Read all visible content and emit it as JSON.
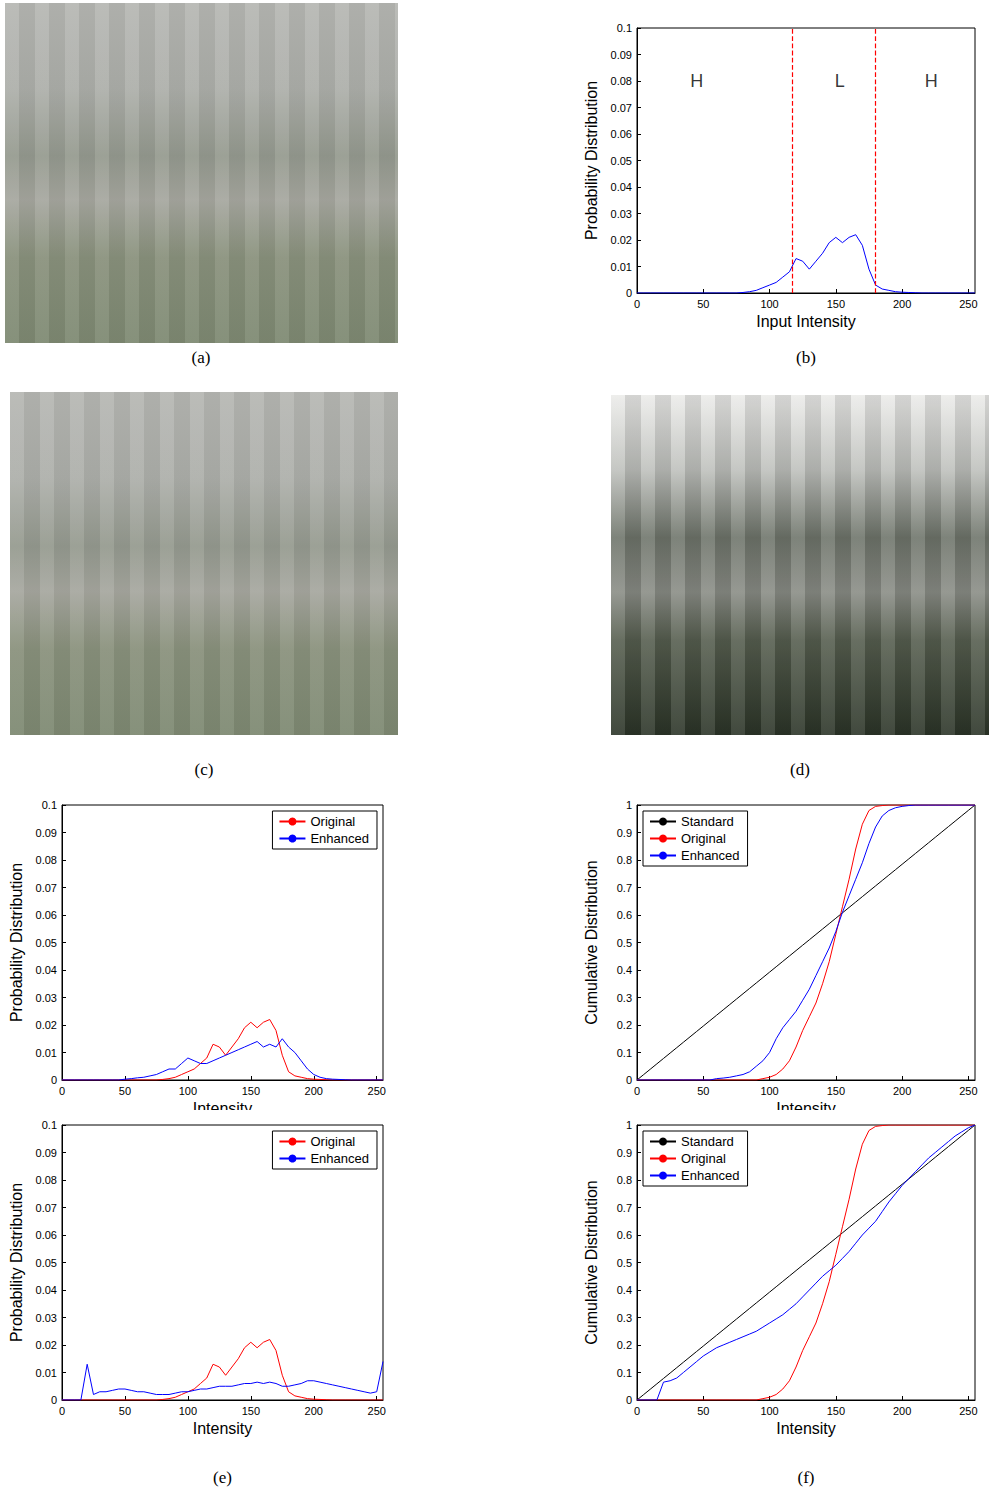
{
  "photos": [
    {
      "caption": "(a)"
    },
    {
      "caption": "(c)"
    },
    {
      "caption": "(d)"
    }
  ],
  "chart_captions": [
    "(b)",
    "(e)",
    "(f)"
  ],
  "chart_data": [
    {
      "type": "line",
      "xlabel": "Input Intensity",
      "ylabel": "Probability Distribution",
      "x": [
        0,
        5,
        10,
        15,
        20,
        25,
        30,
        35,
        40,
        45,
        50,
        55,
        60,
        65,
        70,
        75,
        80,
        85,
        90,
        95,
        100,
        105,
        110,
        115,
        120,
        125,
        130,
        135,
        140,
        145,
        150,
        155,
        160,
        165,
        170,
        175,
        180,
        185,
        190,
        195,
        200,
        205,
        210,
        215,
        220,
        225,
        230,
        235,
        240,
        245,
        250,
        255
      ],
      "values": [
        0,
        0,
        0,
        0,
        0,
        0,
        0,
        0,
        0,
        0,
        0,
        0,
        0,
        0,
        0,
        0,
        0.0002,
        0.0005,
        0.001,
        0.002,
        0.003,
        0.004,
        0.006,
        0.008,
        0.013,
        0.012,
        0.009,
        0.012,
        0.015,
        0.019,
        0.021,
        0.019,
        0.021,
        0.022,
        0.018,
        0.009,
        0.003,
        0.0015,
        0.001,
        0.0005,
        0.0003,
        0.0002,
        0.0001,
        0,
        0,
        0,
        0,
        0,
        0,
        0,
        0,
        0
      ],
      "color": "#0000ff",
      "xlim": [
        0,
        255
      ],
      "xticks": [
        0,
        50,
        100,
        150,
        200,
        250
      ],
      "ylim": [
        0,
        0.1
      ],
      "yticks": [
        0,
        0.01,
        0.02,
        0.03,
        0.04,
        0.05,
        0.06,
        0.07,
        0.08,
        0.09,
        0.1
      ],
      "grid": false,
      "vlines": [
        117,
        180
      ],
      "annotations": [
        {
          "text": "H",
          "x": 45,
          "y": 0.08
        },
        {
          "text": "L",
          "x": 153,
          "y": 0.08
        },
        {
          "text": "H",
          "x": 222,
          "y": 0.08
        }
      ]
    },
    {
      "type": "line",
      "xlabel": "Intensity",
      "ylabel": "Probability Distribution",
      "x": [
        0,
        5,
        10,
        15,
        20,
        25,
        30,
        35,
        40,
        45,
        50,
        55,
        60,
        65,
        70,
        75,
        80,
        85,
        90,
        95,
        100,
        105,
        110,
        115,
        120,
        125,
        130,
        135,
        140,
        145,
        150,
        155,
        160,
        165,
        170,
        175,
        180,
        185,
        190,
        195,
        200,
        205,
        210,
        215,
        220,
        225,
        230,
        235,
        240,
        245,
        250,
        255
      ],
      "series": [
        {
          "name": "Original",
          "color": "#ff0000",
          "values": [
            0,
            0,
            0,
            0,
            0,
            0,
            0,
            0,
            0,
            0,
            0,
            0,
            0,
            0,
            0,
            0,
            0.0002,
            0.0005,
            0.001,
            0.002,
            0.003,
            0.004,
            0.006,
            0.008,
            0.013,
            0.012,
            0.009,
            0.012,
            0.015,
            0.019,
            0.021,
            0.019,
            0.021,
            0.022,
            0.018,
            0.009,
            0.003,
            0.0015,
            0.001,
            0.0005,
            0.0003,
            0.0002,
            0.0001,
            0,
            0,
            0,
            0,
            0,
            0,
            0,
            0,
            0
          ]
        },
        {
          "name": "Enhanced",
          "color": "#0000ff",
          "values": [
            0,
            0,
            0,
            0,
            0,
            0,
            0,
            0,
            0,
            0,
            0.0003,
            0.0005,
            0.0008,
            0.001,
            0.0015,
            0.002,
            0.003,
            0.004,
            0.004,
            0.006,
            0.008,
            0.007,
            0.006,
            0.006,
            0.007,
            0.008,
            0.009,
            0.01,
            0.011,
            0.012,
            0.013,
            0.014,
            0.012,
            0.013,
            0.012,
            0.015,
            0.012,
            0.01,
            0.007,
            0.004,
            0.002,
            0.001,
            0.0005,
            0.0003,
            0.0002,
            0.0001,
            0,
            0,
            0,
            0,
            0,
            0
          ]
        }
      ],
      "xlim": [
        0,
        255
      ],
      "xticks": [
        0,
        50,
        100,
        150,
        200,
        250
      ],
      "ylim": [
        0,
        0.1
      ],
      "yticks": [
        0,
        0.01,
        0.02,
        0.03,
        0.04,
        0.05,
        0.06,
        0.07,
        0.08,
        0.09,
        0.1
      ],
      "grid": false,
      "legend": "upper right"
    },
    {
      "type": "line",
      "xlabel": "Intensity",
      "ylabel": "Probability Distribution",
      "x": [
        0,
        5,
        10,
        15,
        20,
        25,
        30,
        35,
        40,
        45,
        50,
        55,
        60,
        65,
        70,
        75,
        80,
        85,
        90,
        95,
        100,
        105,
        110,
        115,
        120,
        125,
        130,
        135,
        140,
        145,
        150,
        155,
        160,
        165,
        170,
        175,
        180,
        185,
        190,
        195,
        200,
        205,
        210,
        215,
        220,
        225,
        230,
        235,
        240,
        245,
        250,
        255
      ],
      "series": [
        {
          "name": "Original",
          "color": "#ff0000",
          "values": [
            0,
            0,
            0,
            0,
            0,
            0,
            0,
            0,
            0,
            0,
            0,
            0,
            0,
            0,
            0,
            0,
            0.0002,
            0.0005,
            0.001,
            0.002,
            0.003,
            0.004,
            0.006,
            0.008,
            0.013,
            0.012,
            0.009,
            0.012,
            0.015,
            0.019,
            0.021,
            0.019,
            0.021,
            0.022,
            0.018,
            0.009,
            0.003,
            0.0015,
            0.001,
            0.0005,
            0.0003,
            0.0002,
            0.0001,
            0,
            0,
            0,
            0,
            0,
            0,
            0,
            0,
            0
          ]
        },
        {
          "name": "Enhanced",
          "color": "#0000ff",
          "values": [
            0,
            0,
            0,
            0,
            0.013,
            0.002,
            0.003,
            0.003,
            0.0035,
            0.004,
            0.004,
            0.0035,
            0.003,
            0.003,
            0.0025,
            0.002,
            0.002,
            0.002,
            0.0025,
            0.003,
            0.003,
            0.0035,
            0.004,
            0.004,
            0.0045,
            0.005,
            0.005,
            0.005,
            0.0055,
            0.006,
            0.006,
            0.0065,
            0.006,
            0.0065,
            0.006,
            0.005,
            0.005,
            0.0055,
            0.006,
            0.007,
            0.007,
            0.0065,
            0.006,
            0.0055,
            0.005,
            0.0045,
            0.004,
            0.0035,
            0.003,
            0.0025,
            0.003,
            0.014
          ]
        }
      ],
      "xlim": [
        0,
        255
      ],
      "xticks": [
        0,
        50,
        100,
        150,
        200,
        250
      ],
      "ylim": [
        0,
        0.1
      ],
      "yticks": [
        0,
        0.01,
        0.02,
        0.03,
        0.04,
        0.05,
        0.06,
        0.07,
        0.08,
        0.09,
        0.1
      ],
      "grid": false,
      "legend": "upper right"
    },
    {
      "type": "line",
      "xlabel": "Intensity",
      "ylabel": "Cumulative Distribution",
      "x": [
        0,
        5,
        10,
        15,
        20,
        25,
        30,
        35,
        40,
        45,
        50,
        55,
        60,
        65,
        70,
        75,
        80,
        85,
        90,
        95,
        100,
        105,
        110,
        115,
        120,
        125,
        130,
        135,
        140,
        145,
        150,
        155,
        160,
        165,
        170,
        175,
        180,
        185,
        190,
        195,
        200,
        205,
        210,
        215,
        220,
        225,
        230,
        235,
        240,
        245,
        250,
        255
      ],
      "series": [
        {
          "name": "Standard",
          "color": "#000000",
          "values": [
            0,
            0.0196,
            0.0392,
            0.0588,
            0.0784,
            0.098,
            0.1176,
            0.1373,
            0.1569,
            0.1765,
            0.1961,
            0.2157,
            0.2353,
            0.2549,
            0.2745,
            0.2941,
            0.3137,
            0.3333,
            0.3529,
            0.3725,
            0.3922,
            0.4118,
            0.4314,
            0.451,
            0.4706,
            0.4902,
            0.5098,
            0.5294,
            0.549,
            0.5686,
            0.5882,
            0.6078,
            0.6275,
            0.6471,
            0.6667,
            0.6863,
            0.7059,
            0.7255,
            0.7451,
            0.7647,
            0.7843,
            0.8039,
            0.8235,
            0.8431,
            0.8627,
            0.8824,
            0.902,
            0.9216,
            0.9412,
            0.9608,
            0.9804,
            1
          ]
        },
        {
          "name": "Original",
          "color": "#ff0000",
          "values": [
            0,
            0,
            0,
            0,
            0,
            0,
            0,
            0,
            0,
            0,
            0,
            0,
            0,
            0,
            0,
            0,
            0,
            0,
            0,
            0.005,
            0.01,
            0.02,
            0.04,
            0.07,
            0.12,
            0.18,
            0.23,
            0.28,
            0.35,
            0.43,
            0.53,
            0.63,
            0.73,
            0.84,
            0.93,
            0.98,
            0.995,
            0.998,
            1,
            1,
            1,
            1,
            1,
            1,
            1,
            1,
            1,
            1,
            1,
            1,
            1,
            1
          ]
        },
        {
          "name": "Enhanced",
          "color": "#0000ff",
          "values": [
            0,
            0,
            0,
            0,
            0,
            0,
            0,
            0,
            0,
            0,
            0,
            0,
            0.005,
            0.007,
            0.01,
            0.015,
            0.02,
            0.03,
            0.05,
            0.07,
            0.1,
            0.15,
            0.19,
            0.22,
            0.25,
            0.29,
            0.33,
            0.38,
            0.43,
            0.48,
            0.54,
            0.61,
            0.67,
            0.73,
            0.79,
            0.86,
            0.92,
            0.96,
            0.98,
            0.99,
            0.995,
            0.998,
            1,
            1,
            1,
            1,
            1,
            1,
            1,
            1,
            1,
            1
          ]
        }
      ],
      "xlim": [
        0,
        255
      ],
      "xticks": [
        0,
        50,
        100,
        150,
        200,
        250
      ],
      "ylim": [
        0,
        1
      ],
      "yticks": [
        0,
        0.1,
        0.2,
        0.3,
        0.4,
        0.5,
        0.6,
        0.7,
        0.8,
        0.9,
        1
      ],
      "grid": false,
      "legend": "upper left"
    },
    {
      "type": "line",
      "xlabel": "Intensity",
      "ylabel": "Cumulative Distribution",
      "x": [
        0,
        5,
        10,
        15,
        20,
        25,
        30,
        35,
        40,
        45,
        50,
        55,
        60,
        65,
        70,
        75,
        80,
        85,
        90,
        95,
        100,
        105,
        110,
        115,
        120,
        125,
        130,
        135,
        140,
        145,
        150,
        155,
        160,
        165,
        170,
        175,
        180,
        185,
        190,
        195,
        200,
        205,
        210,
        215,
        220,
        225,
        230,
        235,
        240,
        245,
        250,
        255
      ],
      "series": [
        {
          "name": "Standard",
          "color": "#000000",
          "values": [
            0,
            0.0196,
            0.0392,
            0.0588,
            0.0784,
            0.098,
            0.1176,
            0.1373,
            0.1569,
            0.1765,
            0.1961,
            0.2157,
            0.2353,
            0.2549,
            0.2745,
            0.2941,
            0.3137,
            0.3333,
            0.3529,
            0.3725,
            0.3922,
            0.4118,
            0.4314,
            0.451,
            0.4706,
            0.4902,
            0.5098,
            0.5294,
            0.549,
            0.5686,
            0.5882,
            0.6078,
            0.6275,
            0.6471,
            0.6667,
            0.6863,
            0.7059,
            0.7255,
            0.7451,
            0.7647,
            0.7843,
            0.8039,
            0.8235,
            0.8431,
            0.8627,
            0.8824,
            0.902,
            0.9216,
            0.9412,
            0.9608,
            0.9804,
            1
          ]
        },
        {
          "name": "Original",
          "color": "#ff0000",
          "values": [
            0,
            0,
            0,
            0,
            0,
            0,
            0,
            0,
            0,
            0,
            0,
            0,
            0,
            0,
            0,
            0,
            0,
            0,
            0,
            0.005,
            0.01,
            0.02,
            0.04,
            0.07,
            0.12,
            0.18,
            0.23,
            0.28,
            0.35,
            0.43,
            0.53,
            0.63,
            0.73,
            0.84,
            0.93,
            0.98,
            0.995,
            0.998,
            1,
            1,
            1,
            1,
            1,
            1,
            1,
            1,
            1,
            1,
            1,
            1,
            1,
            1
          ]
        },
        {
          "name": "Enhanced",
          "color": "#0000ff",
          "values": [
            0,
            0,
            0,
            0,
            0.065,
            0.07,
            0.08,
            0.1,
            0.12,
            0.14,
            0.16,
            0.175,
            0.19,
            0.2,
            0.21,
            0.22,
            0.23,
            0.24,
            0.25,
            0.265,
            0.28,
            0.295,
            0.31,
            0.33,
            0.35,
            0.375,
            0.4,
            0.425,
            0.45,
            0.47,
            0.49,
            0.515,
            0.54,
            0.57,
            0.6,
            0.625,
            0.65,
            0.685,
            0.72,
            0.75,
            0.78,
            0.805,
            0.83,
            0.855,
            0.88,
            0.9,
            0.92,
            0.94,
            0.96,
            0.975,
            0.99,
            1
          ]
        }
      ],
      "xlim": [
        0,
        255
      ],
      "xticks": [
        0,
        50,
        100,
        150,
        200,
        250
      ],
      "ylim": [
        0,
        1
      ],
      "yticks": [
        0,
        0.1,
        0.2,
        0.3,
        0.4,
        0.5,
        0.6,
        0.7,
        0.8,
        0.9,
        1
      ],
      "grid": false,
      "legend": "upper left"
    }
  ]
}
